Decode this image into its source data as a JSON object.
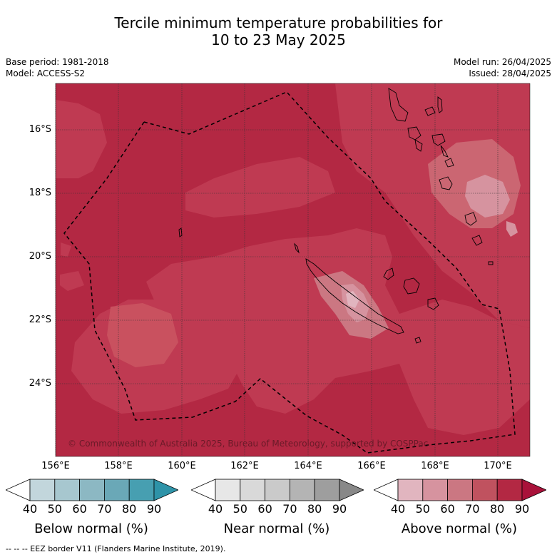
{
  "title_line1": "Tercile minimum temperature probabilities for",
  "title_line2": "10 to 23 May 2025",
  "meta": {
    "base_period": "Base period: 1981-2018",
    "model": "Model: ACCESS-S2",
    "model_run": "Model run: 26/04/2025",
    "issued": "Issued: 28/04/2025"
  },
  "map": {
    "lat_labels": [
      "16°S",
      "18°S",
      "20°S",
      "22°S",
      "24°S"
    ],
    "lon_labels": [
      "156°E",
      "158°E",
      "160°E",
      "162°E",
      "164°E",
      "166°E",
      "168°E",
      "170°E"
    ],
    "copyright": "© Commonwealth of Australia 2025, Bureau of Meteorology, supported by COSPPac"
  },
  "colorbars": [
    {
      "title": "Below normal (%)",
      "ticks": [
        "40",
        "50",
        "60",
        "70",
        "80",
        "90"
      ],
      "colors": [
        "#ffffff",
        "#c2d6dc",
        "#a7c7cf",
        "#8cb8c3",
        "#6aa8b7",
        "#479fb1",
        "#2e93a8"
      ]
    },
    {
      "title": "Near normal (%)",
      "ticks": [
        "40",
        "50",
        "60",
        "70",
        "80",
        "90"
      ],
      "colors": [
        "#ffffff",
        "#e7e7e7",
        "#d9d9d9",
        "#cacaca",
        "#b4b4b4",
        "#9e9e9e",
        "#888888"
      ]
    },
    {
      "title": "Above normal (%)",
      "ticks": [
        "40",
        "50",
        "60",
        "70",
        "80",
        "90"
      ],
      "colors": [
        "#ffffff",
        "#e1b5bf",
        "#d6939f",
        "#cb7782",
        "#c0525f",
        "#b32843",
        "#a9123a"
      ]
    }
  ],
  "footnote": "--  --  -- EEZ border V11 (Flanders Marine Institute, 2019)."
}
